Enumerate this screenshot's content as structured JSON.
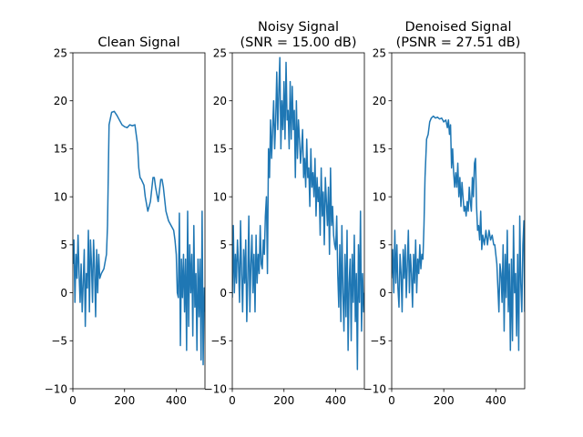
{
  "chart_data": [
    {
      "type": "line",
      "title": "Clean Signal",
      "xlabel": "",
      "ylabel": "",
      "xlim": [
        0,
        511
      ],
      "ylim": [
        -10,
        25
      ],
      "xticks": [
        0,
        200,
        400
      ],
      "yticks": [
        -10,
        -5,
        0,
        5,
        10,
        15,
        20,
        25
      ],
      "line_color": "#1f77b4",
      "series": [
        {
          "x": [
            0,
            4,
            8,
            12,
            16,
            20,
            24,
            28,
            32,
            36,
            40,
            44,
            48,
            52,
            56,
            60,
            64,
            68,
            72,
            76,
            80,
            84,
            88,
            92,
            96,
            100,
            104,
            110,
            120,
            130,
            134,
            140,
            150,
            160,
            170,
            180,
            190,
            200,
            210,
            220,
            230,
            240,
            250,
            255,
            260,
            265,
            270,
            275,
            280,
            290,
            300,
            310,
            315,
            320,
            330,
            340,
            345,
            350,
            360,
            370,
            380,
            390,
            395,
            400,
            404,
            408,
            412,
            416,
            420,
            424,
            428,
            432,
            436,
            440,
            444,
            448,
            452,
            456,
            460,
            464,
            468,
            472,
            476,
            480,
            484,
            488,
            492,
            496,
            500,
            504,
            508,
            511
          ],
          "y": [
            3,
            5.5,
            -1,
            4,
            1.5,
            6,
            2,
            -1,
            3,
            -2,
            1,
            4.5,
            -3.5,
            2,
            0.5,
            6.5,
            -2,
            5.5,
            3,
            -1,
            5.5,
            2.5,
            -2.5,
            4.5,
            0,
            4,
            1.5,
            2,
            2.5,
            4,
            7,
            17.5,
            18.8,
            18.9,
            18.5,
            18,
            17.5,
            17.3,
            17.2,
            17.5,
            17.4,
            17.5,
            15.5,
            13,
            12,
            11.8,
            11.5,
            11.2,
            10,
            8.5,
            9.5,
            12,
            12,
            11,
            9.5,
            11.8,
            11.8,
            11,
            8.5,
            7.5,
            7,
            6.5,
            5.5,
            4,
            0,
            -0.5,
            8.3,
            -5.5,
            3.5,
            -0.5,
            4,
            -2,
            3.5,
            -6,
            8.5,
            -3.5,
            5,
            0,
            4,
            -4.5,
            7,
            -1.5,
            2,
            -6,
            3.5,
            -2.5,
            3.5,
            -7,
            8.5,
            -7.5,
            0.5,
            -2
          ]
        }
      ]
    },
    {
      "type": "line",
      "title": "Noisy Signal\n(SNR = 15.00 dB)",
      "xlabel": "",
      "ylabel": "",
      "xlim": [
        0,
        511
      ],
      "ylim": [
        -10,
        25
      ],
      "xticks": [
        0,
        200,
        400
      ],
      "yticks": [
        -10,
        -5,
        0,
        5,
        10,
        15,
        20,
        25
      ],
      "line_color": "#1f77b4",
      "series": [
        {
          "x": [
            0,
            4,
            8,
            12,
            16,
            20,
            24,
            28,
            32,
            36,
            40,
            44,
            48,
            52,
            56,
            60,
            64,
            68,
            72,
            76,
            80,
            84,
            88,
            92,
            96,
            100,
            104,
            108,
            112,
            116,
            120,
            124,
            128,
            132,
            136,
            140,
            144,
            148,
            152,
            156,
            160,
            164,
            168,
            172,
            176,
            180,
            184,
            188,
            192,
            196,
            200,
            204,
            208,
            212,
            216,
            220,
            224,
            228,
            232,
            236,
            240,
            244,
            248,
            252,
            256,
            260,
            264,
            268,
            272,
            276,
            280,
            284,
            288,
            292,
            296,
            300,
            304,
            308,
            312,
            316,
            320,
            324,
            328,
            332,
            336,
            340,
            344,
            348,
            352,
            356,
            360,
            364,
            368,
            372,
            376,
            380,
            384,
            388,
            392,
            396,
            400,
            404,
            408,
            412,
            416,
            420,
            424,
            428,
            432,
            436,
            440,
            444,
            448,
            452,
            456,
            460,
            464,
            468,
            472,
            476,
            480,
            484,
            488,
            492,
            496,
            500,
            504,
            508,
            511
          ],
          "y": [
            -0.5,
            7,
            0,
            4,
            1,
            5.5,
            3,
            -1,
            7.5,
            2,
            -2,
            4.5,
            1,
            5.5,
            -3,
            1.5,
            8,
            -2,
            3,
            6,
            0,
            4,
            -2,
            6,
            1,
            4,
            2,
            7,
            3,
            2.5,
            5.5,
            4,
            8,
            10,
            2,
            15,
            12,
            18,
            14,
            17,
            20,
            15,
            18,
            23,
            17,
            21,
            24.5,
            15,
            20,
            17,
            22,
            16,
            24,
            18,
            19,
            15,
            22,
            16,
            21.5,
            17,
            19,
            12,
            20,
            14,
            18,
            16,
            13.5,
            15,
            17,
            12,
            14,
            11,
            16,
            12,
            13,
            9,
            15,
            11,
            12.5,
            10,
            14,
            8,
            12,
            9.5,
            11,
            6,
            13,
            8,
            10.5,
            5,
            12,
            9.5,
            7,
            11,
            4,
            13,
            7,
            9,
            6,
            5,
            4.5,
            8,
            2,
            -1.5,
            5,
            -3,
            7,
            0,
            -4,
            4,
            -2.5,
            6.5,
            -6,
            1,
            3.5,
            -5,
            4,
            -1,
            6,
            -3,
            2,
            -8,
            5,
            -1,
            8.5,
            -4,
            2,
            -2,
            0
          ]
        }
      ]
    },
    {
      "type": "line",
      "title": "Denoised Signal\n(PSNR = 27.51 dB)",
      "xlabel": "",
      "ylabel": "",
      "xlim": [
        0,
        511
      ],
      "ylim": [
        -10,
        25
      ],
      "xticks": [
        0,
        200,
        400
      ],
      "yticks": [
        -10,
        -5,
        0,
        5,
        10,
        15,
        20,
        25
      ],
      "line_color": "#1f77b4",
      "series": [
        {
          "x": [
            0,
            4,
            8,
            12,
            16,
            20,
            24,
            28,
            32,
            36,
            40,
            44,
            48,
            52,
            56,
            60,
            64,
            68,
            72,
            76,
            80,
            84,
            88,
            92,
            96,
            100,
            104,
            108,
            112,
            116,
            120,
            124,
            128,
            134,
            140,
            146,
            152,
            160,
            168,
            176,
            184,
            192,
            200,
            208,
            214,
            218,
            222,
            226,
            230,
            234,
            238,
            242,
            246,
            250,
            254,
            258,
            262,
            266,
            270,
            274,
            278,
            282,
            286,
            290,
            294,
            298,
            302,
            306,
            310,
            314,
            318,
            322,
            326,
            330,
            334,
            338,
            342,
            346,
            350,
            356,
            362,
            368,
            374,
            380,
            386,
            392,
            396,
            400,
            404,
            408,
            412,
            416,
            420,
            424,
            428,
            432,
            436,
            440,
            444,
            448,
            452,
            456,
            460,
            464,
            468,
            472,
            476,
            480,
            484,
            488,
            492,
            496,
            500,
            504,
            508,
            511
          ],
          "y": [
            1.5,
            4.5,
            0,
            6.5,
            1,
            5,
            0.5,
            -1.5,
            4,
            2,
            -2,
            4.5,
            1.5,
            5,
            -0.5,
            3,
            6.5,
            0,
            4,
            2,
            -1.5,
            4,
            1,
            5.5,
            0,
            3.5,
            2,
            5,
            2.5,
            4,
            3.5,
            7,
            12,
            16,
            16.5,
            17.8,
            18.2,
            18.4,
            18.2,
            18.3,
            18.1,
            18.2,
            17.8,
            18,
            17.2,
            18,
            16.5,
            17.5,
            13,
            15,
            12.5,
            11,
            12.5,
            11,
            13.5,
            10,
            12,
            9,
            11.5,
            10,
            8.5,
            9,
            8,
            9.5,
            8.5,
            11,
            9.5,
            8.5,
            12,
            10,
            13.5,
            14,
            9,
            6.5,
            7,
            5.5,
            8.5,
            4.5,
            6,
            5,
            6.5,
            5,
            6.5,
            5.5,
            6,
            5,
            5,
            4,
            3,
            0.5,
            -2,
            3,
            2,
            -1,
            5,
            -4,
            4,
            -0.5,
            6.5,
            -2,
            3,
            -6,
            3.5,
            -5,
            7,
            0,
            2,
            -4.5,
            4,
            -6,
            8,
            1,
            -2,
            5,
            7.5,
            -2
          ]
        }
      ]
    }
  ]
}
